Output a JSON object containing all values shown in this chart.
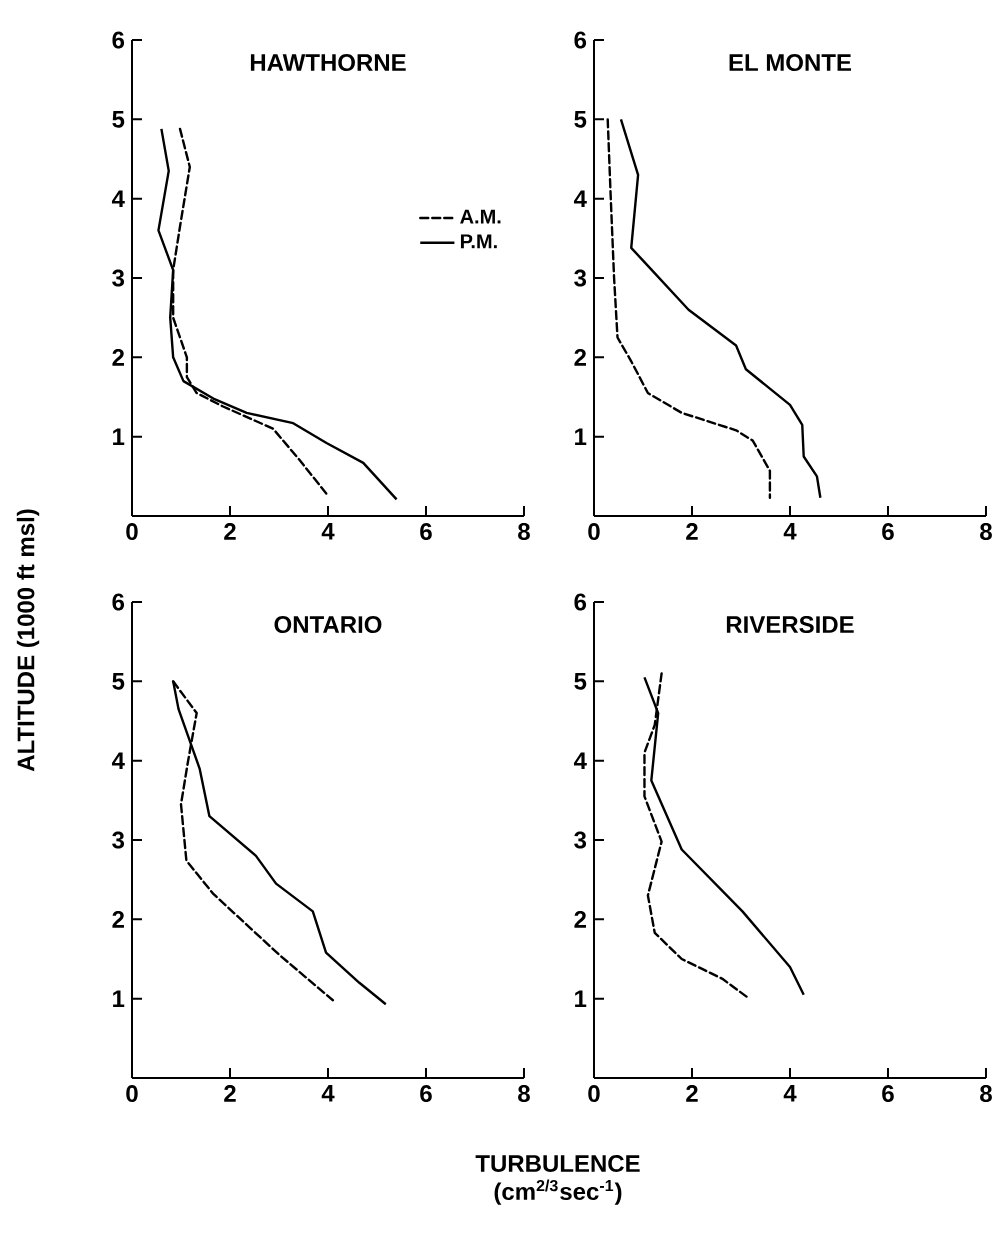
{
  "chart_data": [
    {
      "type": "line",
      "title": "HAWTHORNE",
      "ylabel": "ALTITUDE (1000 ft msl)",
      "xlim": [
        0,
        8
      ],
      "ylim": [
        0,
        6
      ],
      "xticks": [
        0,
        2,
        4,
        6,
        8
      ],
      "yticks": [
        1,
        2,
        3,
        4,
        5,
        6
      ],
      "legend": "right",
      "series": [
        {
          "name": "A.M.",
          "color": "#000000",
          "line_style": "dashed",
          "x": [
            0.98,
            1.18,
            0.98,
            0.84,
            0.84,
            1.12,
            1.12,
            1.32,
            1.86,
            2.88,
            3.4,
            3.97
          ],
          "values": [
            4.88,
            4.4,
            3.65,
            3.1,
            2.5,
            2.0,
            1.75,
            1.55,
            1.38,
            1.1,
            0.72,
            0.28
          ]
        },
        {
          "name": "P.M.",
          "color": "#000000",
          "line_style": "solid",
          "x": [
            0.6,
            0.75,
            0.54,
            0.84,
            0.78,
            0.84,
            1.05,
            1.66,
            2.34,
            3.29,
            3.97,
            4.72,
            5.4
          ],
          "values": [
            4.88,
            4.35,
            3.6,
            3.1,
            2.5,
            2.0,
            1.7,
            1.48,
            1.3,
            1.17,
            0.92,
            0.67,
            0.21
          ]
        }
      ]
    },
    {
      "type": "line",
      "title": "EL MONTE",
      "xlim": [
        0,
        8
      ],
      "ylim": [
        0,
        6
      ],
      "xticks": [
        0,
        2,
        4,
        6,
        8
      ],
      "yticks": [
        1,
        2,
        3,
        4,
        5,
        6
      ],
      "series": [
        {
          "color": "#000000",
          "line_style": "dashed",
          "x": [
            0.28,
            0.34,
            0.41,
            0.48,
            0.76,
            1.1,
            1.79,
            2.9,
            3.24,
            3.59,
            3.59
          ],
          "values": [
            5.0,
            4.04,
            3.0,
            2.25,
            1.95,
            1.55,
            1.3,
            1.08,
            0.95,
            0.57,
            0.23
          ]
        },
        {
          "color": "#000000",
          "line_style": "solid",
          "x": [
            0.55,
            0.9,
            0.76,
            1.03,
            1.93,
            2.9,
            3.1,
            4.0,
            4.25,
            4.28,
            4.55,
            4.62
          ],
          "values": [
            5.0,
            4.3,
            3.38,
            3.2,
            2.6,
            2.15,
            1.85,
            1.4,
            1.15,
            0.75,
            0.5,
            0.23
          ]
        }
      ]
    },
    {
      "type": "line",
      "title": "ONTARIO",
      "xlabel": "TURBULENCE (cm$^{2/3}$sec$^{-1}$)",
      "xlim": [
        0,
        8
      ],
      "ylim": [
        0,
        6
      ],
      "xticks": [
        0,
        2,
        4,
        6,
        8
      ],
      "yticks": [
        1,
        2,
        3,
        4,
        5,
        6
      ],
      "series": [
        {
          "color": "#000000",
          "line_style": "dashed",
          "x": [
            0.84,
            1.32,
            1.14,
            1.0,
            1.11,
            1.66,
            3.01,
            4.1
          ],
          "values": [
            5.0,
            4.6,
            3.98,
            3.45,
            2.74,
            2.32,
            1.55,
            0.98
          ]
        },
        {
          "color": "#000000",
          "line_style": "solid",
          "x": [
            0.84,
            0.95,
            1.38,
            1.58,
            2.53,
            2.94,
            3.69,
            3.96,
            4.64,
            5.18
          ],
          "values": [
            5.0,
            4.65,
            3.9,
            3.3,
            2.8,
            2.45,
            2.1,
            1.58,
            1.2,
            0.93
          ]
        }
      ]
    },
    {
      "type": "line",
      "title": "RIVERSIDE",
      "xlim": [
        0,
        8
      ],
      "ylim": [
        0,
        6
      ],
      "xticks": [
        0,
        2,
        4,
        6,
        8
      ],
      "yticks": [
        1,
        2,
        3,
        4,
        5,
        6
      ],
      "series": [
        {
          "color": "#000000",
          "line_style": "dashed",
          "x": [
            1.38,
            1.24,
            1.03,
            1.03,
            1.38,
            1.1,
            1.24,
            1.79,
            2.62,
            3.17
          ],
          "values": [
            5.1,
            4.45,
            4.1,
            3.55,
            2.98,
            2.3,
            1.83,
            1.5,
            1.25,
            1.0
          ]
        },
        {
          "color": "#000000",
          "line_style": "solid",
          "x": [
            1.03,
            1.31,
            1.17,
            1.79,
            3.03,
            4.0,
            4.28
          ],
          "values": [
            5.05,
            4.6,
            3.75,
            2.88,
            2.1,
            1.4,
            1.05
          ]
        }
      ]
    }
  ]
}
